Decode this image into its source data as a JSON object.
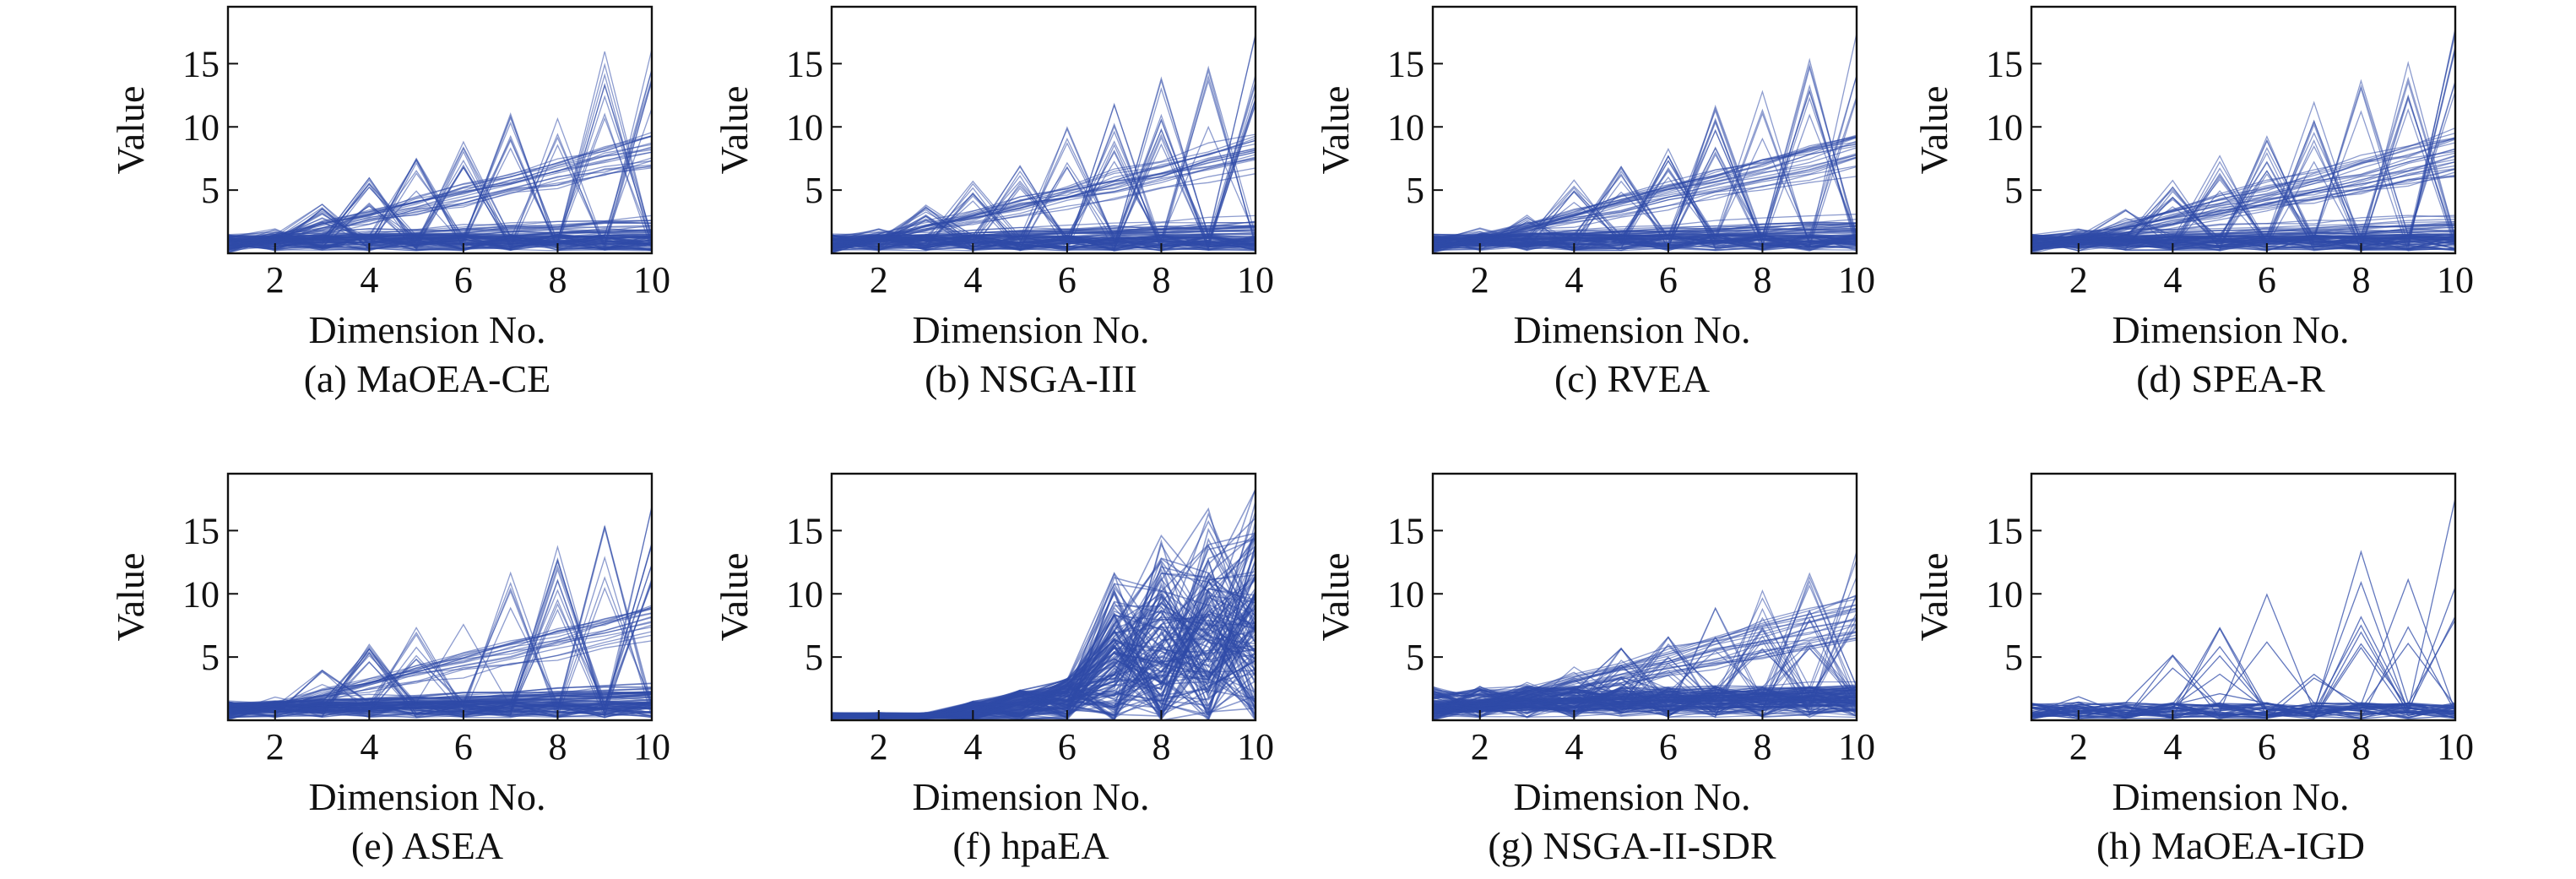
{
  "figure": {
    "line_color": "#2f4ba8",
    "axis_color": "#111111"
  },
  "chart_data": [
    {
      "type": "line",
      "subtype": "parallel-coordinates",
      "caption": "(a) MaOEA-CE",
      "xlabel": "Dimension No.",
      "ylabel": "Value",
      "xlim": [
        1,
        10
      ],
      "ylim": [
        0,
        19.5
      ],
      "xticks": [
        2,
        4,
        6,
        8,
        10
      ],
      "yticks": [
        5,
        10,
        15
      ],
      "grid": false,
      "style": "spread",
      "n_lines": 130
    },
    {
      "type": "line",
      "subtype": "parallel-coordinates",
      "caption": "(b) NSGA-III",
      "xlabel": "Dimension No.",
      "ylabel": "Value",
      "xlim": [
        1,
        10
      ],
      "ylim": [
        0,
        19.5
      ],
      "xticks": [
        2,
        4,
        6,
        8,
        10
      ],
      "yticks": [
        5,
        10,
        15
      ],
      "grid": false,
      "style": "spread",
      "n_lines": 130
    },
    {
      "type": "line",
      "subtype": "parallel-coordinates",
      "caption": "(c) RVEA",
      "xlabel": "Dimension No.",
      "ylabel": "Value",
      "xlim": [
        1,
        10
      ],
      "ylim": [
        0,
        19.5
      ],
      "xticks": [
        2,
        4,
        6,
        8,
        10
      ],
      "yticks": [
        5,
        10,
        15
      ],
      "grid": false,
      "style": "spread",
      "n_lines": 130
    },
    {
      "type": "line",
      "subtype": "parallel-coordinates",
      "caption": "(d) SPEA-R",
      "xlabel": "Dimension No.",
      "ylabel": "Value",
      "xlim": [
        1,
        10
      ],
      "ylim": [
        0,
        19.5
      ],
      "xticks": [
        2,
        4,
        6,
        8,
        10
      ],
      "yticks": [
        5,
        10,
        15
      ],
      "grid": false,
      "style": "spread",
      "n_lines": 130
    },
    {
      "type": "line",
      "subtype": "parallel-coordinates",
      "caption": "(e) ASEA",
      "xlabel": "Dimension No.",
      "ylabel": "Value",
      "xlim": [
        1,
        10
      ],
      "ylim": [
        0,
        19.5
      ],
      "xticks": [
        2,
        4,
        6,
        8,
        10
      ],
      "yticks": [
        5,
        10,
        15
      ],
      "grid": false,
      "style": "spread",
      "n_lines": 130
    },
    {
      "type": "line",
      "subtype": "parallel-coordinates",
      "caption": "(f) hpaEA",
      "xlabel": "Dimension No.",
      "ylabel": "Value",
      "xlim": [
        1,
        10
      ],
      "ylim": [
        0,
        19.5
      ],
      "xticks": [
        2,
        4,
        6,
        8,
        10
      ],
      "yticks": [
        5,
        10,
        15
      ],
      "grid": false,
      "style": "dense-tail",
      "n_lines": 150
    },
    {
      "type": "line",
      "subtype": "parallel-coordinates",
      "caption": "(g) NSGA-II-SDR",
      "xlabel": "Dimension No.",
      "ylabel": "Value",
      "xlim": [
        1,
        10
      ],
      "ylim": [
        0,
        19.5
      ],
      "xticks": [
        2,
        4,
        6,
        8,
        10
      ],
      "yticks": [
        5,
        10,
        15
      ],
      "grid": false,
      "style": "dense",
      "n_lines": 170
    },
    {
      "type": "line",
      "subtype": "parallel-coordinates",
      "caption": "(h) MaOEA-IGD",
      "xlabel": "Dimension No.",
      "ylabel": "Value",
      "xlim": [
        1,
        10
      ],
      "ylim": [
        0,
        19.5
      ],
      "xticks": [
        2,
        4,
        6,
        8,
        10
      ],
      "yticks": [
        5,
        10,
        15
      ],
      "grid": false,
      "style": "sparse",
      "n_lines": 45
    }
  ]
}
